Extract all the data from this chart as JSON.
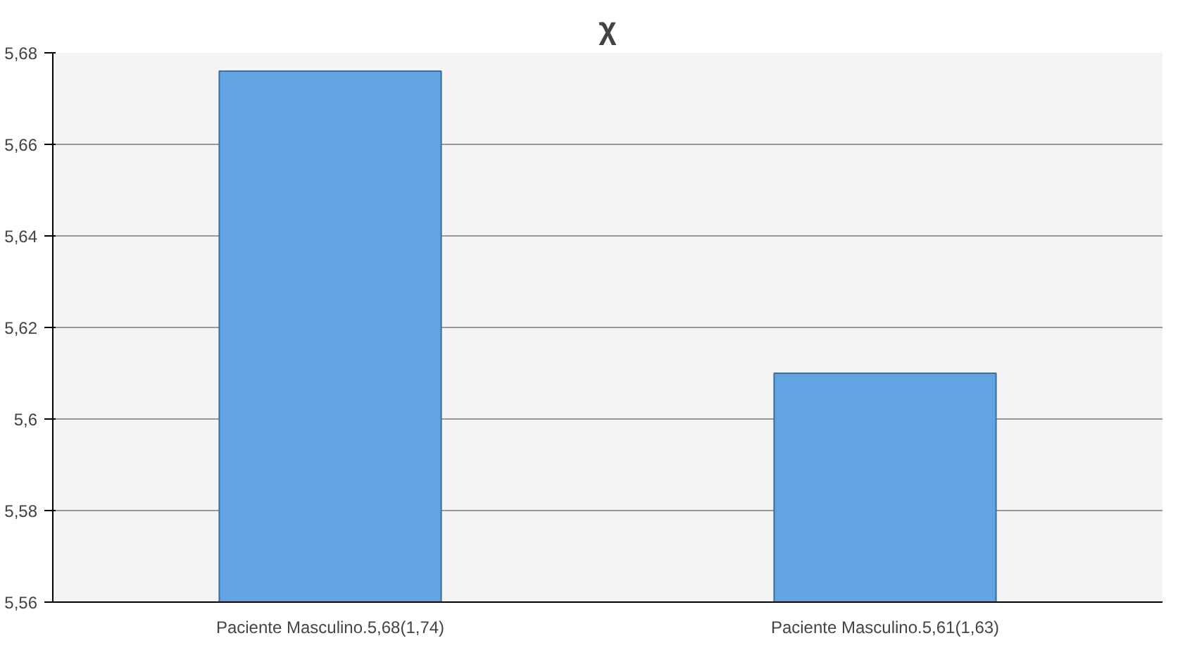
{
  "chart_data": {
    "type": "bar",
    "title": "χ",
    "categories": [
      "Paciente Masculino.5,68(1,74)",
      "Paciente Masculino.5,61(1,63)"
    ],
    "values": [
      5.676,
      5.61
    ],
    "color": "#62a3e2",
    "ylim": [
      5.56,
      5.68
    ],
    "yticks": [
      {
        "value": 5.56,
        "label": "5,56"
      },
      {
        "value": 5.58,
        "label": "5,58"
      },
      {
        "value": 5.6,
        "label": "5,6"
      },
      {
        "value": 5.62,
        "label": "5,62"
      },
      {
        "value": 5.64,
        "label": "5,64"
      },
      {
        "value": 5.66,
        "label": "5,66"
      },
      {
        "value": 5.68,
        "label": "5,68"
      }
    ],
    "grid": "y"
  }
}
